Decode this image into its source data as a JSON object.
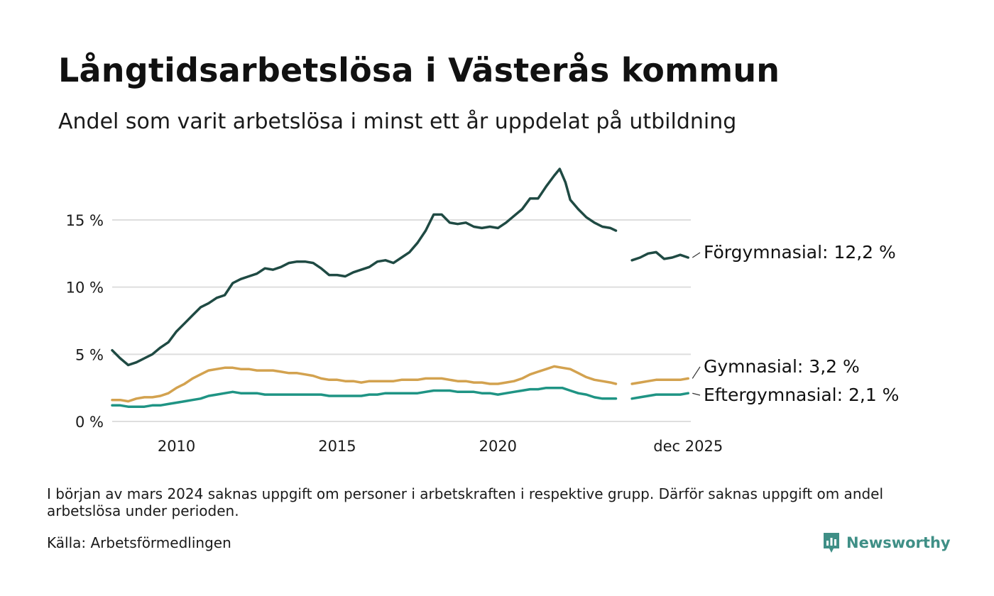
{
  "title": "Långtidsarbetslösa i Västerås kommun",
  "subtitle": "Andel som varit arbetslösa i minst ett år uppdelat på utbildning",
  "footnote": "I början av mars 2024 saknas uppgift om personer i arbetskraften i respektive grupp. Därför saknas uppgift om andel arbetslösa under perioden.",
  "source": "Källa: Arbetsförmedlingen",
  "brand": {
    "name": "Newsworthy",
    "icon": "newsworthy-logo-icon",
    "color": "#3f8f86"
  },
  "chart_data": {
    "type": "line",
    "title": "Långtidsarbetslösa i Västerås kommun",
    "xlabel": "",
    "ylabel": "",
    "xlim": [
      2008.0,
      2026.0
    ],
    "ylim": [
      0,
      19
    ],
    "y_ticks": [
      {
        "value": 0,
        "label": "0 %"
      },
      {
        "value": 5,
        "label": "5 %"
      },
      {
        "value": 10,
        "label": "10 %"
      },
      {
        "value": 15,
        "label": "15 %"
      }
    ],
    "x_ticks": [
      {
        "value": 2010,
        "label": "2010"
      },
      {
        "value": 2015,
        "label": "2015"
      },
      {
        "value": 2020,
        "label": "2020"
      },
      {
        "value": 2025.917,
        "label": "dec 2025"
      }
    ],
    "grid": true,
    "legend": "end-of-line labels",
    "gap": [
      2023.75,
      2024.17
    ],
    "series": [
      {
        "name": "Förgymnasial",
        "label": "Förgymnasial: 12,2 %",
        "color": "#1f4a43",
        "points": [
          [
            2008.0,
            5.3
          ],
          [
            2008.25,
            4.7
          ],
          [
            2008.5,
            4.2
          ],
          [
            2008.75,
            4.4
          ],
          [
            2009.0,
            4.7
          ],
          [
            2009.25,
            5.0
          ],
          [
            2009.5,
            5.5
          ],
          [
            2009.75,
            5.9
          ],
          [
            2010.0,
            6.7
          ],
          [
            2010.25,
            7.3
          ],
          [
            2010.5,
            7.9
          ],
          [
            2010.75,
            8.5
          ],
          [
            2011.0,
            8.8
          ],
          [
            2011.25,
            9.2
          ],
          [
            2011.5,
            9.4
          ],
          [
            2011.75,
            10.3
          ],
          [
            2012.0,
            10.6
          ],
          [
            2012.25,
            10.8
          ],
          [
            2012.5,
            11.0
          ],
          [
            2012.75,
            11.4
          ],
          [
            2013.0,
            11.3
          ],
          [
            2013.25,
            11.5
          ],
          [
            2013.5,
            11.8
          ],
          [
            2013.75,
            11.9
          ],
          [
            2014.0,
            11.9
          ],
          [
            2014.25,
            11.8
          ],
          [
            2014.5,
            11.4
          ],
          [
            2014.75,
            10.9
          ],
          [
            2015.0,
            10.9
          ],
          [
            2015.25,
            10.8
          ],
          [
            2015.5,
            11.1
          ],
          [
            2015.75,
            11.3
          ],
          [
            2016.0,
            11.5
          ],
          [
            2016.25,
            11.9
          ],
          [
            2016.5,
            12.0
          ],
          [
            2016.75,
            11.8
          ],
          [
            2017.0,
            12.2
          ],
          [
            2017.25,
            12.6
          ],
          [
            2017.5,
            13.3
          ],
          [
            2017.75,
            14.2
          ],
          [
            2018.0,
            15.4
          ],
          [
            2018.25,
            15.4
          ],
          [
            2018.5,
            14.8
          ],
          [
            2018.75,
            14.7
          ],
          [
            2019.0,
            14.8
          ],
          [
            2019.25,
            14.5
          ],
          [
            2019.5,
            14.4
          ],
          [
            2019.75,
            14.5
          ],
          [
            2020.0,
            14.4
          ],
          [
            2020.25,
            14.8
          ],
          [
            2020.5,
            15.3
          ],
          [
            2020.75,
            15.8
          ],
          [
            2021.0,
            16.6
          ],
          [
            2021.25,
            16.6
          ],
          [
            2021.5,
            17.5
          ],
          [
            2021.75,
            18.3
          ],
          [
            2021.92,
            18.8
          ],
          [
            2022.1,
            17.8
          ],
          [
            2022.25,
            16.5
          ],
          [
            2022.5,
            15.8
          ],
          [
            2022.75,
            15.2
          ],
          [
            2023.0,
            14.8
          ],
          [
            2023.25,
            14.5
          ],
          [
            2023.5,
            14.4
          ],
          [
            2023.67,
            14.2
          ],
          [
            2024.17,
            12.0
          ],
          [
            2024.42,
            12.2
          ],
          [
            2024.67,
            12.5
          ],
          [
            2024.92,
            12.6
          ],
          [
            2025.17,
            12.1
          ],
          [
            2025.42,
            12.2
          ],
          [
            2025.67,
            12.4
          ],
          [
            2025.917,
            12.2
          ]
        ]
      },
      {
        "name": "Gymnasial",
        "label": "Gymnasial:  3,2 %",
        "color": "#d3a24f",
        "points": [
          [
            2008.0,
            1.6
          ],
          [
            2008.25,
            1.6
          ],
          [
            2008.5,
            1.5
          ],
          [
            2008.75,
            1.7
          ],
          [
            2009.0,
            1.8
          ],
          [
            2009.25,
            1.8
          ],
          [
            2009.5,
            1.9
          ],
          [
            2009.75,
            2.1
          ],
          [
            2010.0,
            2.5
          ],
          [
            2010.25,
            2.8
          ],
          [
            2010.5,
            3.2
          ],
          [
            2010.75,
            3.5
          ],
          [
            2011.0,
            3.8
          ],
          [
            2011.25,
            3.9
          ],
          [
            2011.5,
            4.0
          ],
          [
            2011.75,
            4.0
          ],
          [
            2012.0,
            3.9
          ],
          [
            2012.25,
            3.9
          ],
          [
            2012.5,
            3.8
          ],
          [
            2012.75,
            3.8
          ],
          [
            2013.0,
            3.8
          ],
          [
            2013.25,
            3.7
          ],
          [
            2013.5,
            3.6
          ],
          [
            2013.75,
            3.6
          ],
          [
            2014.0,
            3.5
          ],
          [
            2014.25,
            3.4
          ],
          [
            2014.5,
            3.2
          ],
          [
            2014.75,
            3.1
          ],
          [
            2015.0,
            3.1
          ],
          [
            2015.25,
            3.0
          ],
          [
            2015.5,
            3.0
          ],
          [
            2015.75,
            2.9
          ],
          [
            2016.0,
            3.0
          ],
          [
            2016.25,
            3.0
          ],
          [
            2016.5,
            3.0
          ],
          [
            2016.75,
            3.0
          ],
          [
            2017.0,
            3.1
          ],
          [
            2017.25,
            3.1
          ],
          [
            2017.5,
            3.1
          ],
          [
            2017.75,
            3.2
          ],
          [
            2018.0,
            3.2
          ],
          [
            2018.25,
            3.2
          ],
          [
            2018.5,
            3.1
          ],
          [
            2018.75,
            3.0
          ],
          [
            2019.0,
            3.0
          ],
          [
            2019.25,
            2.9
          ],
          [
            2019.5,
            2.9
          ],
          [
            2019.75,
            2.8
          ],
          [
            2020.0,
            2.8
          ],
          [
            2020.25,
            2.9
          ],
          [
            2020.5,
            3.0
          ],
          [
            2020.75,
            3.2
          ],
          [
            2021.0,
            3.5
          ],
          [
            2021.25,
            3.7
          ],
          [
            2021.5,
            3.9
          ],
          [
            2021.75,
            4.1
          ],
          [
            2022.0,
            4.0
          ],
          [
            2022.25,
            3.9
          ],
          [
            2022.5,
            3.6
          ],
          [
            2022.75,
            3.3
          ],
          [
            2023.0,
            3.1
          ],
          [
            2023.25,
            3.0
          ],
          [
            2023.5,
            2.9
          ],
          [
            2023.67,
            2.8
          ],
          [
            2024.17,
            2.8
          ],
          [
            2024.42,
            2.9
          ],
          [
            2024.67,
            3.0
          ],
          [
            2024.92,
            3.1
          ],
          [
            2025.17,
            3.1
          ],
          [
            2025.42,
            3.1
          ],
          [
            2025.67,
            3.1
          ],
          [
            2025.917,
            3.2
          ]
        ]
      },
      {
        "name": "Eftergymnasial",
        "label": "Eftergymnasial:  2,1 %",
        "color": "#1f9484",
        "points": [
          [
            2008.0,
            1.2
          ],
          [
            2008.25,
            1.2
          ],
          [
            2008.5,
            1.1
          ],
          [
            2008.75,
            1.1
          ],
          [
            2009.0,
            1.1
          ],
          [
            2009.25,
            1.2
          ],
          [
            2009.5,
            1.2
          ],
          [
            2009.75,
            1.3
          ],
          [
            2010.0,
            1.4
          ],
          [
            2010.25,
            1.5
          ],
          [
            2010.5,
            1.6
          ],
          [
            2010.75,
            1.7
          ],
          [
            2011.0,
            1.9
          ],
          [
            2011.25,
            2.0
          ],
          [
            2011.5,
            2.1
          ],
          [
            2011.75,
            2.2
          ],
          [
            2012.0,
            2.1
          ],
          [
            2012.25,
            2.1
          ],
          [
            2012.5,
            2.1
          ],
          [
            2012.75,
            2.0
          ],
          [
            2013.0,
            2.0
          ],
          [
            2013.25,
            2.0
          ],
          [
            2013.5,
            2.0
          ],
          [
            2013.75,
            2.0
          ],
          [
            2014.0,
            2.0
          ],
          [
            2014.25,
            2.0
          ],
          [
            2014.5,
            2.0
          ],
          [
            2014.75,
            1.9
          ],
          [
            2015.0,
            1.9
          ],
          [
            2015.25,
            1.9
          ],
          [
            2015.5,
            1.9
          ],
          [
            2015.75,
            1.9
          ],
          [
            2016.0,
            2.0
          ],
          [
            2016.25,
            2.0
          ],
          [
            2016.5,
            2.1
          ],
          [
            2016.75,
            2.1
          ],
          [
            2017.0,
            2.1
          ],
          [
            2017.25,
            2.1
          ],
          [
            2017.5,
            2.1
          ],
          [
            2017.75,
            2.2
          ],
          [
            2018.0,
            2.3
          ],
          [
            2018.25,
            2.3
          ],
          [
            2018.5,
            2.3
          ],
          [
            2018.75,
            2.2
          ],
          [
            2019.0,
            2.2
          ],
          [
            2019.25,
            2.2
          ],
          [
            2019.5,
            2.1
          ],
          [
            2019.75,
            2.1
          ],
          [
            2020.0,
            2.0
          ],
          [
            2020.25,
            2.1
          ],
          [
            2020.5,
            2.2
          ],
          [
            2020.75,
            2.3
          ],
          [
            2021.0,
            2.4
          ],
          [
            2021.25,
            2.4
          ],
          [
            2021.5,
            2.5
          ],
          [
            2021.75,
            2.5
          ],
          [
            2022.0,
            2.5
          ],
          [
            2022.25,
            2.3
          ],
          [
            2022.5,
            2.1
          ],
          [
            2022.75,
            2.0
          ],
          [
            2023.0,
            1.8
          ],
          [
            2023.25,
            1.7
          ],
          [
            2023.5,
            1.7
          ],
          [
            2023.67,
            1.7
          ],
          [
            2024.17,
            1.7
          ],
          [
            2024.42,
            1.8
          ],
          [
            2024.67,
            1.9
          ],
          [
            2024.92,
            2.0
          ],
          [
            2025.17,
            2.0
          ],
          [
            2025.42,
            2.0
          ],
          [
            2025.67,
            2.0
          ],
          [
            2025.917,
            2.1
          ]
        ]
      }
    ]
  }
}
